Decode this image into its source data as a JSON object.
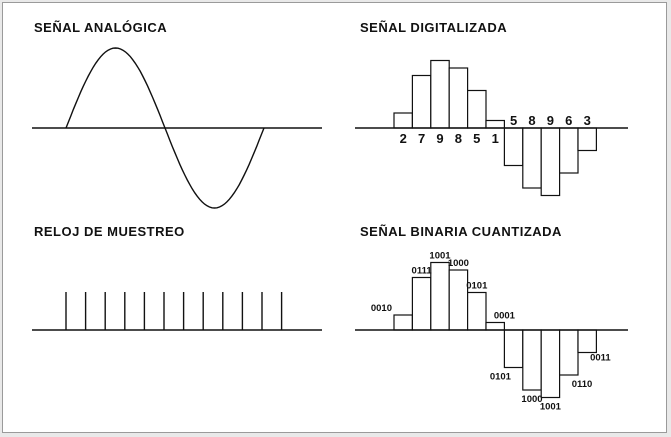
{
  "panels": {
    "analog": {
      "title": "SEÑAL ANALÓGICA"
    },
    "digital": {
      "title": "SEÑAL DIGITALIZADA",
      "samples": [
        {
          "label": "2",
          "value": 2
        },
        {
          "label": "7",
          "value": 7
        },
        {
          "label": "9",
          "value": 9
        },
        {
          "label": "8",
          "value": 8
        },
        {
          "label": "5",
          "value": 5
        },
        {
          "label": "1",
          "value": 1
        },
        {
          "label": "5",
          "value": -5
        },
        {
          "label": "8",
          "value": -8
        },
        {
          "label": "9",
          "value": -9
        },
        {
          "label": "6",
          "value": -6
        },
        {
          "label": "3",
          "value": -3
        }
      ]
    },
    "clock": {
      "title": "RELOJ DE MUESTREO",
      "tick_count": 12
    },
    "binary": {
      "title": "SEÑAL BINARIA CUANTIZADA",
      "samples": [
        {
          "code": "0010",
          "value": 2
        },
        {
          "code": "0111",
          "value": 7
        },
        {
          "code": "1001",
          "value": 9
        },
        {
          "code": "1000",
          "value": 8
        },
        {
          "code": "0101",
          "value": 5
        },
        {
          "code": "0001",
          "value": 1
        },
        {
          "code": "0101",
          "value": -5
        },
        {
          "code": "1000",
          "value": -8
        },
        {
          "code": "1001",
          "value": -9
        },
        {
          "code": "0110",
          "value": -6
        },
        {
          "code": "0011",
          "value": -3
        }
      ]
    }
  }
}
